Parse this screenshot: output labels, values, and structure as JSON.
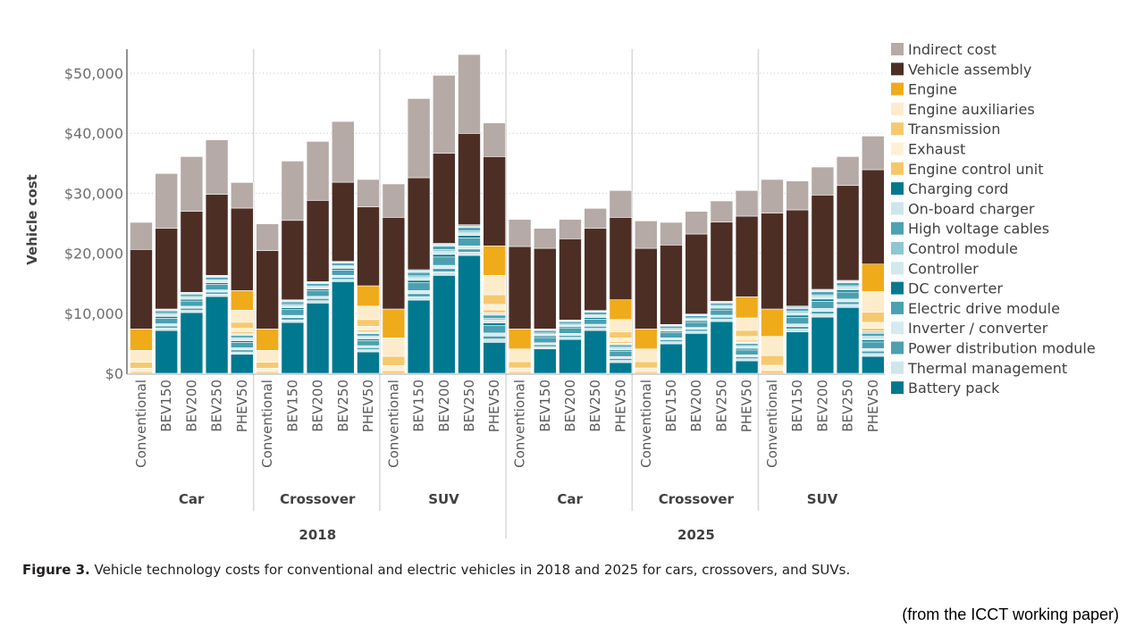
{
  "chart_data": {
    "type": "bar",
    "stacked": true,
    "ylabel": "Vehicle cost",
    "ylim": [
      0,
      55000
    ],
    "yticks": [
      "$0",
      "$10,000",
      "$20,000",
      "$30,000",
      "$40,000",
      "$50,000"
    ],
    "ytick_values": [
      0,
      10000,
      20000,
      30000,
      40000,
      50000
    ],
    "grid": "horizontal dotted",
    "legend_position": "right",
    "categories": [
      "Conventional",
      "BEV150",
      "BEV200",
      "BEV250",
      "PHEV50",
      "Conventional",
      "BEV150",
      "BEV200",
      "BEV250",
      "PHEV50",
      "Conventional",
      "BEV150",
      "BEV200",
      "BEV250",
      "PHEV50",
      "Conventional",
      "BEV150",
      "BEV200",
      "BEV250",
      "PHEV50",
      "Conventional",
      "BEV150",
      "BEV200",
      "BEV250",
      "PHEV50",
      "Conventional",
      "BEV150",
      "BEV200",
      "BEV250",
      "PHEV50"
    ],
    "vehicle_groups": [
      "Car",
      "Crossover",
      "SUV",
      "Car",
      "Crossover",
      "SUV"
    ],
    "years": [
      "2018",
      "2025"
    ],
    "series": [
      {
        "name": "Indirect cost",
        "color": "#b5aaa6",
        "values": [
          4510,
          9140,
          9130,
          9080,
          4260,
          4470,
          9880,
          9820,
          10120,
          4570,
          5560,
          13190,
          13000,
          13140,
          5600,
          4510,
          3320,
          3220,
          3330,
          4470,
          4570,
          3770,
          3770,
          3530,
          4270,
          5610,
          4810,
          4660,
          4820,
          5600
        ]
      },
      {
        "name": "Vehicle assembly",
        "color": "#4d2e25",
        "values": [
          13250,
          13440,
          13490,
          13490,
          13740,
          13040,
          13240,
          13540,
          13190,
          13140,
          15280,
          15330,
          14970,
          15230,
          14880,
          13740,
          13440,
          13540,
          13690,
          13740,
          13440,
          13240,
          13340,
          13180,
          13440,
          15970,
          16030,
          15720,
          15810,
          15730
        ]
      },
      {
        "name": "Engine",
        "color": "#f0ab1b",
        "values": [
          3570,
          0,
          0,
          0,
          3270,
          3570,
          0,
          0,
          0,
          3380,
          4810,
          0,
          0,
          0,
          4910,
          3330,
          0,
          0,
          0,
          3280,
          3330,
          0,
          0,
          0,
          3520,
          4560,
          0,
          0,
          0,
          4570
        ]
      },
      {
        "name": "Engine auxiliaries",
        "color": "#fdeccc",
        "values": [
          1990,
          0,
          0,
          0,
          2010,
          1990,
          0,
          0,
          0,
          2240,
          3070,
          0,
          0,
          0,
          3220,
          2110,
          0,
          0,
          0,
          2060,
          2110,
          0,
          0,
          0,
          2070,
          3200,
          0,
          0,
          0,
          3430
        ]
      },
      {
        "name": "Transmission",
        "color": "#f6c96f",
        "values": [
          990,
          0,
          0,
          0,
          1010,
          990,
          0,
          0,
          0,
          1120,
          1530,
          0,
          0,
          0,
          1610,
          1060,
          0,
          0,
          0,
          1030,
          1060,
          0,
          0,
          0,
          1030,
          1600,
          0,
          0,
          0,
          1710
        ]
      },
      {
        "name": "Exhaust",
        "color": "#fdf0d6",
        "values": [
          570,
          0,
          0,
          0,
          580,
          570,
          0,
          0,
          0,
          650,
          890,
          0,
          0,
          0,
          930,
          610,
          0,
          0,
          0,
          590,
          610,
          0,
          0,
          0,
          600,
          920,
          0,
          0,
          0,
          990
        ]
      },
      {
        "name": "Engine control unit",
        "color": "#f5c767",
        "values": [
          270,
          0,
          0,
          0,
          270,
          270,
          0,
          0,
          0,
          300,
          410,
          0,
          0,
          0,
          440,
          280,
          0,
          0,
          0,
          280,
          280,
          0,
          0,
          0,
          280,
          430,
          0,
          0,
          0,
          460
        ]
      },
      {
        "name": "Charging cord",
        "color": "#00788c",
        "values": [
          0,
          110,
          100,
          100,
          110,
          0,
          100,
          110,
          100,
          90,
          0,
          150,
          160,
          150,
          120,
          0,
          90,
          100,
          90,
          90,
          0,
          100,
          90,
          110,
          90,
          0,
          130,
          130,
          130,
          130
        ]
      },
      {
        "name": "On-board charger",
        "color": "#cde6eb",
        "values": [
          0,
          210,
          200,
          210,
          210,
          0,
          230,
          210,
          200,
          200,
          0,
          300,
          320,
          310,
          300,
          0,
          200,
          190,
          200,
          190,
          0,
          190,
          190,
          200,
          190,
          0,
          260,
          280,
          270,
          250
        ]
      },
      {
        "name": "High voltage cables",
        "color": "#4ba2b3",
        "values": [
          0,
          390,
          370,
          390,
          380,
          0,
          410,
          390,
          370,
          370,
          0,
          560,
          590,
          560,
          550,
          0,
          370,
          360,
          370,
          360,
          0,
          360,
          360,
          370,
          350,
          0,
          470,
          510,
          500,
          460
        ]
      },
      {
        "name": "Control module",
        "color": "#8ec7d1",
        "values": [
          0,
          210,
          200,
          210,
          210,
          0,
          230,
          210,
          200,
          200,
          0,
          300,
          320,
          310,
          300,
          0,
          200,
          190,
          200,
          190,
          0,
          190,
          190,
          200,
          190,
          0,
          260,
          280,
          270,
          250
        ]
      },
      {
        "name": "Controller",
        "color": "#d1e9ed",
        "values": [
          0,
          320,
          300,
          320,
          310,
          0,
          340,
          320,
          300,
          300,
          0,
          460,
          480,
          460,
          450,
          0,
          300,
          290,
          300,
          290,
          0,
          290,
          290,
          300,
          290,
          0,
          390,
          420,
          410,
          380
        ]
      },
      {
        "name": "DC converter",
        "color": "#0a788c",
        "values": [
          0,
          290,
          270,
          280,
          280,
          0,
          300,
          290,
          270,
          270,
          0,
          400,
          430,
          410,
          400,
          0,
          270,
          260,
          270,
          260,
          0,
          260,
          260,
          270,
          250,
          0,
          350,
          370,
          360,
          340
        ]
      },
      {
        "name": "Electric drive module",
        "color": "#4aa0b1",
        "values": [
          0,
          930,
          880,
          920,
          900,
          0,
          980,
          930,
          880,
          860,
          0,
          1310,
          1390,
          1330,
          1290,
          0,
          870,
          840,
          860,
          840,
          0,
          840,
          840,
          880,
          820,
          0,
          1120,
          1200,
          1170,
          1100
        ]
      },
      {
        "name": "Inverter / converter",
        "color": "#d4ebef",
        "values": [
          0,
          360,
          340,
          350,
          350,
          0,
          380,
          360,
          340,
          330,
          0,
          510,
          540,
          510,
          500,
          0,
          330,
          320,
          330,
          320,
          0,
          320,
          320,
          340,
          320,
          0,
          430,
          460,
          450,
          420
        ]
      },
      {
        "name": "Power distribution module",
        "color": "#4c9fb0",
        "values": [
          0,
          360,
          340,
          350,
          350,
          0,
          380,
          360,
          340,
          330,
          0,
          510,
          540,
          510,
          500,
          0,
          330,
          320,
          330,
          320,
          0,
          320,
          320,
          340,
          320,
          0,
          430,
          460,
          450,
          420
        ]
      },
      {
        "name": "Thermal management",
        "color": "#cfe7ec",
        "values": [
          0,
          390,
          370,
          390,
          380,
          0,
          410,
          390,
          370,
          370,
          0,
          560,
          590,
          560,
          550,
          0,
          370,
          360,
          370,
          360,
          0,
          360,
          360,
          370,
          350,
          0,
          470,
          510,
          500,
          460
        ]
      },
      {
        "name": "Battery pack",
        "color": "#007990",
        "values": [
          0,
          7140,
          10120,
          12800,
          3170,
          0,
          8480,
          11710,
          15280,
          3570,
          0,
          12200,
          16320,
          19640,
          5160,
          0,
          4060,
          5650,
          7140,
          1790,
          0,
          4910,
          6650,
          8630,
          2080,
          0,
          6890,
          9370,
          10970,
          2830
        ]
      }
    ]
  },
  "caption": {
    "label": "Figure 3.",
    "text": " Vehicle technology costs for conventional and electric vehicles in 2018 and 2025 for cars, crossovers, and SUVs."
  },
  "source_note": "(from the ICCT working paper)"
}
